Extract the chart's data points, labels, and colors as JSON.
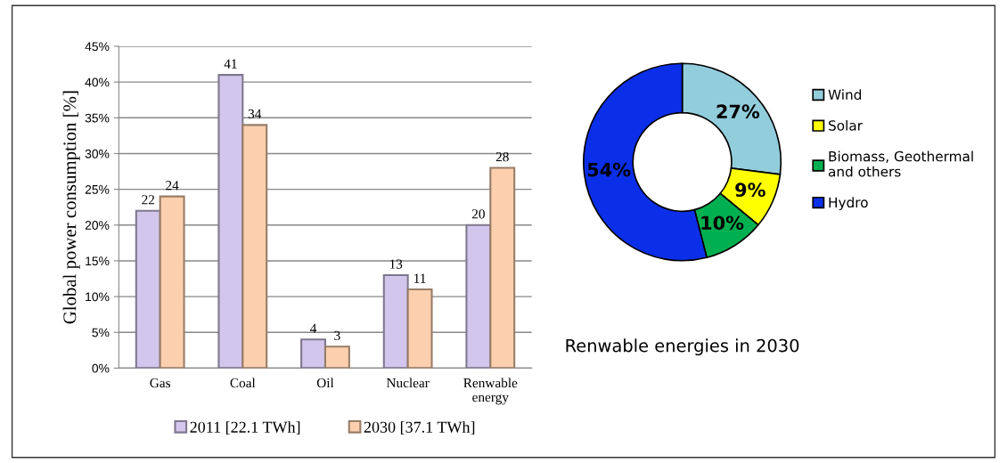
{
  "chart_data": [
    {
      "type": "bar",
      "ylabel": "Global power consumption [%]",
      "categories": [
        "Gas",
        "Coal",
        "Oil",
        "Nuclear",
        "Renwable\nenergy"
      ],
      "series": [
        {
          "name": "2011 [22.1 TWh]",
          "color": "#d3c6ec",
          "values": [
            22,
            41,
            4,
            13,
            20
          ]
        },
        {
          "name": "2030 [37.1 TWh]",
          "color": "#fcd0ae",
          "values": [
            24,
            34,
            3,
            11,
            28
          ]
        }
      ],
      "ylim": [
        0,
        45
      ],
      "yticks": [
        {
          "value": 0,
          "label": "0%"
        },
        {
          "value": 5,
          "label": "5%"
        },
        {
          "value": 10,
          "label": "10%"
        },
        {
          "value": 15,
          "label": "15%"
        },
        {
          "value": 20,
          "label": "20%"
        },
        {
          "value": 25,
          "label": "25%"
        },
        {
          "value": 30,
          "label": "30%"
        },
        {
          "value": 35,
          "label": "35%"
        },
        {
          "value": 40,
          "label": "40%"
        },
        {
          "value": 45,
          "label": "45%"
        }
      ],
      "grid": "y",
      "legend": "bottom",
      "data_labels": true
    },
    {
      "type": "donut",
      "title": "Renwable energies in 2030",
      "categories": [
        "Wind",
        "Solar",
        "Biomass, Geothermal\nand others",
        "Hydro"
      ],
      "values": [
        27,
        9,
        10,
        54
      ],
      "colors": [
        "#92cddc",
        "#ffff00",
        "#00b050",
        "#0b2fe8"
      ],
      "legend": "right",
      "value_labels": [
        "27%",
        "9%",
        "10%",
        "54%"
      ]
    }
  ]
}
